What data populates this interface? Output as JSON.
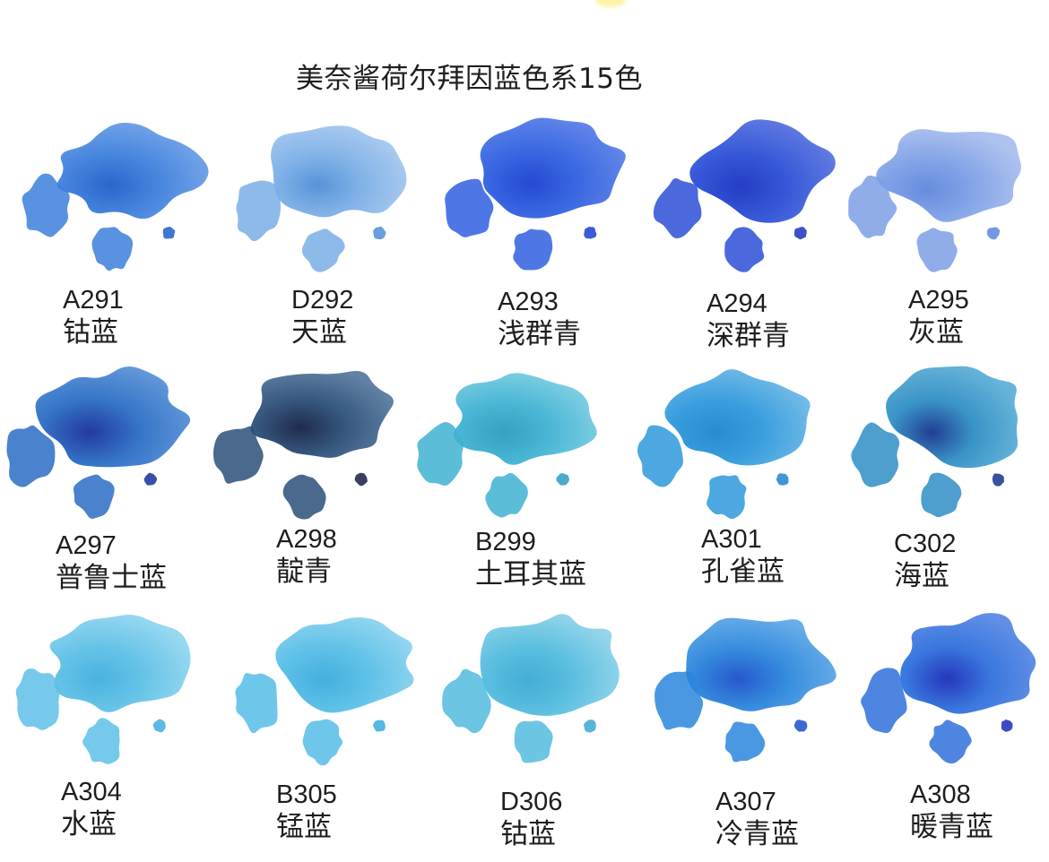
{
  "title": "美奈酱荷尔拜因蓝色系15色",
  "swatches": [
    {
      "code": "A291",
      "name": "钴蓝",
      "color": "#3c7fdc",
      "shade": "#1d5ec8",
      "light": "#6fa0e8"
    },
    {
      "code": "D292",
      "name": "天蓝",
      "color": "#7aaee6",
      "shade": "#4f8ed6",
      "light": "#a6c8ef"
    },
    {
      "code": "A293",
      "name": "浅群青",
      "color": "#2f5fe0",
      "shade": "#1a3fd0",
      "light": "#5a80e8"
    },
    {
      "code": "A294",
      "name": "深群青",
      "color": "#2b4fd6",
      "shade": "#1932c0",
      "light": "#5a74e0"
    },
    {
      "code": "A295",
      "name": "灰蓝",
      "color": "#7d9fe6",
      "shade": "#5f86dc",
      "light": "#aabfee"
    },
    {
      "code": "A297",
      "name": "普鲁士蓝",
      "color": "#2a6cc4",
      "shade": "#172f9a",
      "light": "#5b93d8"
    },
    {
      "code": "A298",
      "name": "靛青",
      "color": "#2b4f78",
      "shade": "#151f44",
      "light": "#5a7aa0"
    },
    {
      "code": "B299",
      "name": "土耳其蓝",
      "color": "#3fb2d2",
      "shade": "#2a9cc0",
      "light": "#7acde2"
    },
    {
      "code": "A301",
      "name": "孔雀蓝",
      "color": "#2e98dc",
      "shade": "#1d84cf",
      "light": "#6bb8e6"
    },
    {
      "code": "C302",
      "name": "海蓝",
      "color": "#2f8ec4",
      "shade": "#16348e",
      "light": "#5fb0d8"
    },
    {
      "code": "A304",
      "name": "水蓝",
      "color": "#5ec0e6",
      "shade": "#40aede",
      "light": "#92d6ef"
    },
    {
      "code": "B305",
      "name": "锰蓝",
      "color": "#55bde6",
      "shade": "#3aabdc",
      "light": "#8ad2ef"
    },
    {
      "code": "D306",
      "name": "钴蓝",
      "color": "#52bbde",
      "shade": "#38a8d2",
      "light": "#8fd3ea"
    },
    {
      "code": "A307",
      "name": "冷青蓝",
      "color": "#2a86dc",
      "shade": "#1b4fca",
      "light": "#62aae8"
    },
    {
      "code": "A308",
      "name": "暖青蓝",
      "color": "#2f70dc",
      "shade": "#1a2cb8",
      "light": "#5a8ae6"
    }
  ]
}
